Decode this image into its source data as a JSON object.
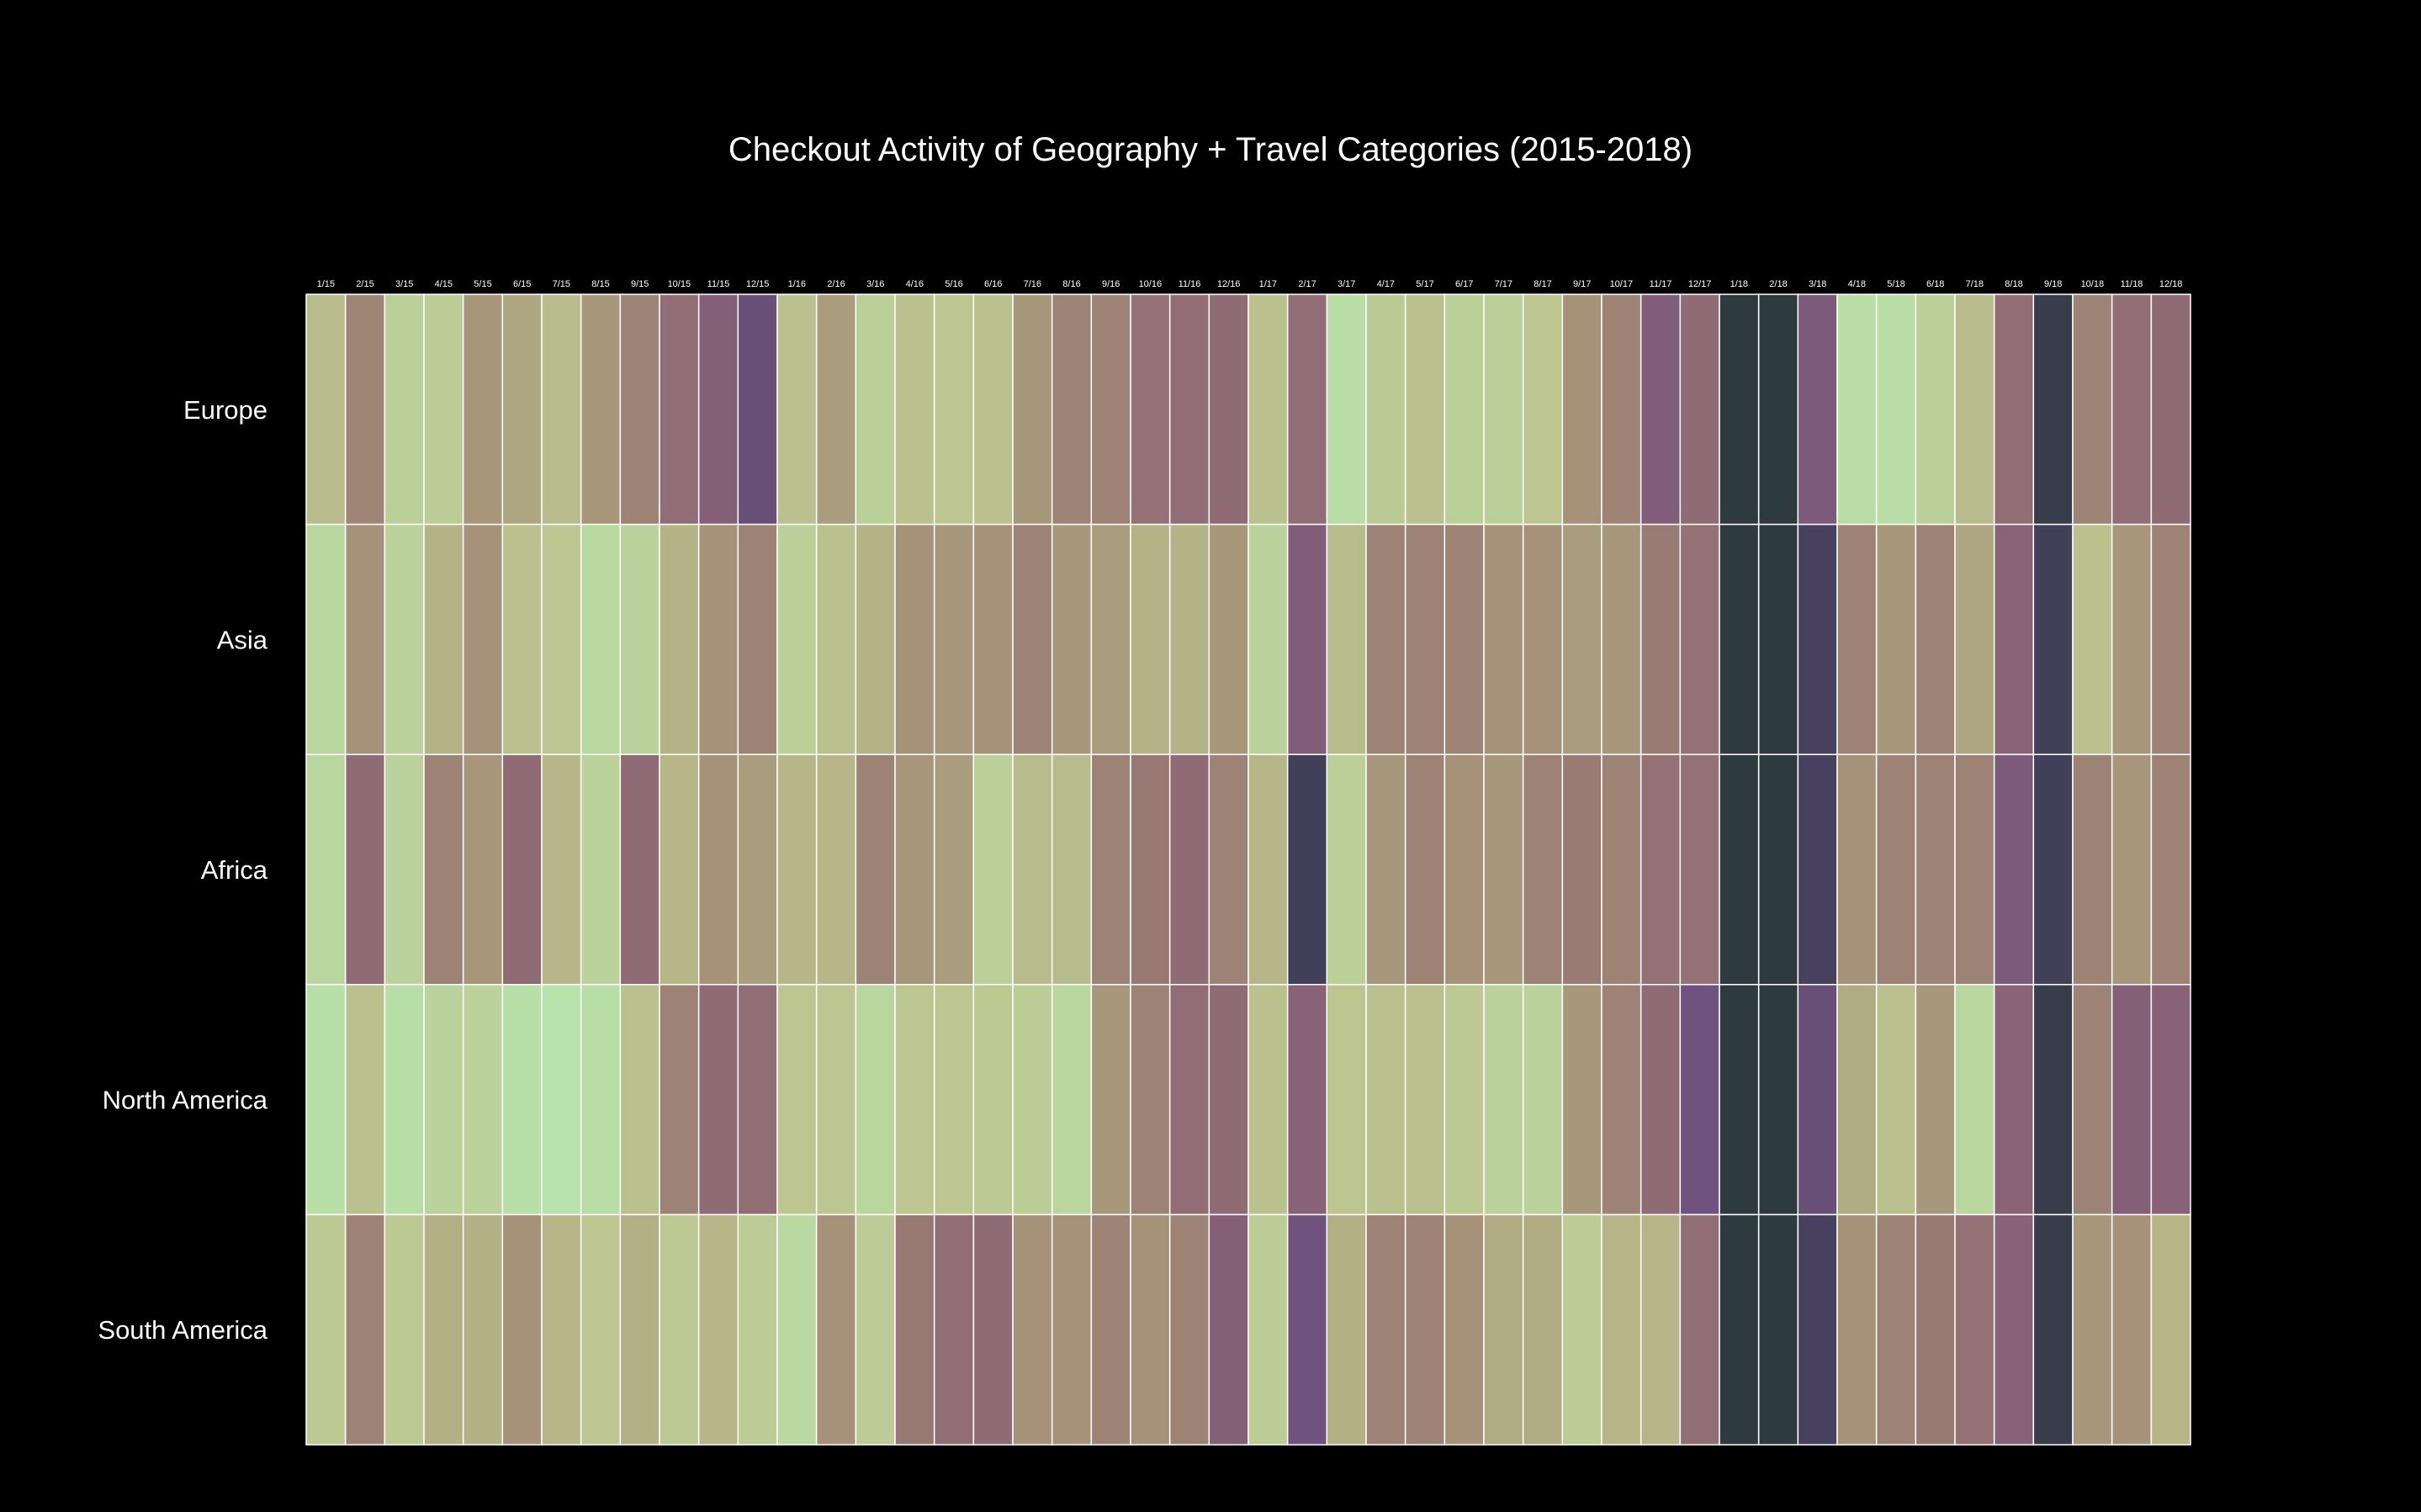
{
  "chart_data": {
    "type": "heatmap",
    "title": "Checkout Activity of Geography + Travel Categories (2015-2018)",
    "xlabel": "",
    "ylabel": "",
    "grid": true,
    "colormap": {
      "name": "pinkish green to purple to dark slate",
      "stops": [
        {
          "v": 0.0,
          "color": "#b8e2ab"
        },
        {
          "v": 0.18,
          "color": "#bdc690"
        },
        {
          "v": 0.35,
          "color": "#a8987b"
        },
        {
          "v": 0.5,
          "color": "#987873"
        },
        {
          "v": 0.65,
          "color": "#8a6476"
        },
        {
          "v": 0.78,
          "color": "#6f527e"
        },
        {
          "v": 0.88,
          "color": "#47415f"
        },
        {
          "v": 1.0,
          "color": "#2b3a3c"
        }
      ]
    },
    "categories": [
      "1/15",
      "2/15",
      "3/15",
      "4/15",
      "5/15",
      "6/15",
      "7/15",
      "8/15",
      "9/15",
      "10/15",
      "11/15",
      "12/15",
      "1/16",
      "2/16",
      "3/16",
      "4/16",
      "5/16",
      "6/16",
      "7/16",
      "8/16",
      "9/16",
      "10/16",
      "11/16",
      "12/16",
      "1/17",
      "2/17",
      "3/17",
      "4/17",
      "5/17",
      "6/17",
      "7/17",
      "8/17",
      "9/17",
      "10/17",
      "11/17",
      "12/17",
      "1/18",
      "2/18",
      "3/18",
      "4/18",
      "5/18",
      "6/18",
      "7/18",
      "8/18",
      "9/18",
      "10/18",
      "11/18",
      "12/18"
    ],
    "rows": [
      "Europe",
      "Asia",
      "Africa",
      "North America",
      "South America"
    ],
    "values": [
      [
        0.22,
        0.44,
        0.12,
        0.14,
        0.36,
        0.3,
        0.22,
        0.35,
        0.45,
        0.58,
        0.68,
        0.8,
        0.2,
        0.33,
        0.12,
        0.2,
        0.18,
        0.2,
        0.35,
        0.45,
        0.45,
        0.55,
        0.58,
        0.6,
        0.2,
        0.58,
        0.03,
        0.15,
        0.2,
        0.12,
        0.12,
        0.18,
        0.38,
        0.45,
        0.7,
        0.6,
        0.99,
        0.99,
        0.72,
        0.03,
        0.03,
        0.12,
        0.22,
        0.58,
        0.95,
        0.45,
        0.58,
        0.6
      ],
      [
        0.08,
        0.38,
        0.1,
        0.25,
        0.38,
        0.2,
        0.18,
        0.06,
        0.1,
        0.25,
        0.38,
        0.45,
        0.12,
        0.2,
        0.25,
        0.38,
        0.35,
        0.38,
        0.45,
        0.35,
        0.33,
        0.25,
        0.25,
        0.35,
        0.1,
        0.7,
        0.22,
        0.45,
        0.45,
        0.45,
        0.38,
        0.38,
        0.33,
        0.35,
        0.48,
        0.55,
        0.99,
        0.99,
        0.88,
        0.45,
        0.35,
        0.45,
        0.3,
        0.65,
        0.9,
        0.2,
        0.36,
        0.45
      ],
      [
        0.08,
        0.6,
        0.1,
        0.45,
        0.36,
        0.6,
        0.24,
        0.1,
        0.6,
        0.24,
        0.38,
        0.33,
        0.24,
        0.24,
        0.45,
        0.36,
        0.33,
        0.12,
        0.22,
        0.22,
        0.45,
        0.5,
        0.6,
        0.45,
        0.24,
        0.9,
        0.12,
        0.35,
        0.45,
        0.38,
        0.35,
        0.45,
        0.48,
        0.45,
        0.55,
        0.55,
        0.99,
        0.99,
        0.88,
        0.38,
        0.45,
        0.45,
        0.45,
        0.72,
        0.9,
        0.45,
        0.36,
        0.45
      ],
      [
        0.02,
        0.2,
        0.03,
        0.1,
        0.1,
        0.02,
        0.0,
        0.03,
        0.2,
        0.45,
        0.6,
        0.58,
        0.18,
        0.18,
        0.08,
        0.18,
        0.18,
        0.16,
        0.14,
        0.08,
        0.35,
        0.45,
        0.58,
        0.6,
        0.2,
        0.66,
        0.18,
        0.2,
        0.2,
        0.16,
        0.1,
        0.1,
        0.35,
        0.45,
        0.6,
        0.78,
        0.99,
        0.99,
        0.8,
        0.28,
        0.2,
        0.35,
        0.08,
        0.65,
        0.95,
        0.45,
        0.68,
        0.66
      ],
      [
        0.16,
        0.45,
        0.16,
        0.26,
        0.26,
        0.38,
        0.24,
        0.18,
        0.26,
        0.16,
        0.24,
        0.14,
        0.06,
        0.38,
        0.14,
        0.5,
        0.58,
        0.6,
        0.38,
        0.38,
        0.45,
        0.38,
        0.45,
        0.68,
        0.14,
        0.78,
        0.26,
        0.45,
        0.45,
        0.38,
        0.28,
        0.28,
        0.14,
        0.24,
        0.24,
        0.58,
        0.99,
        0.99,
        0.88,
        0.38,
        0.45,
        0.5,
        0.55,
        0.66,
        0.95,
        0.35,
        0.38,
        0.24
      ]
    ]
  }
}
